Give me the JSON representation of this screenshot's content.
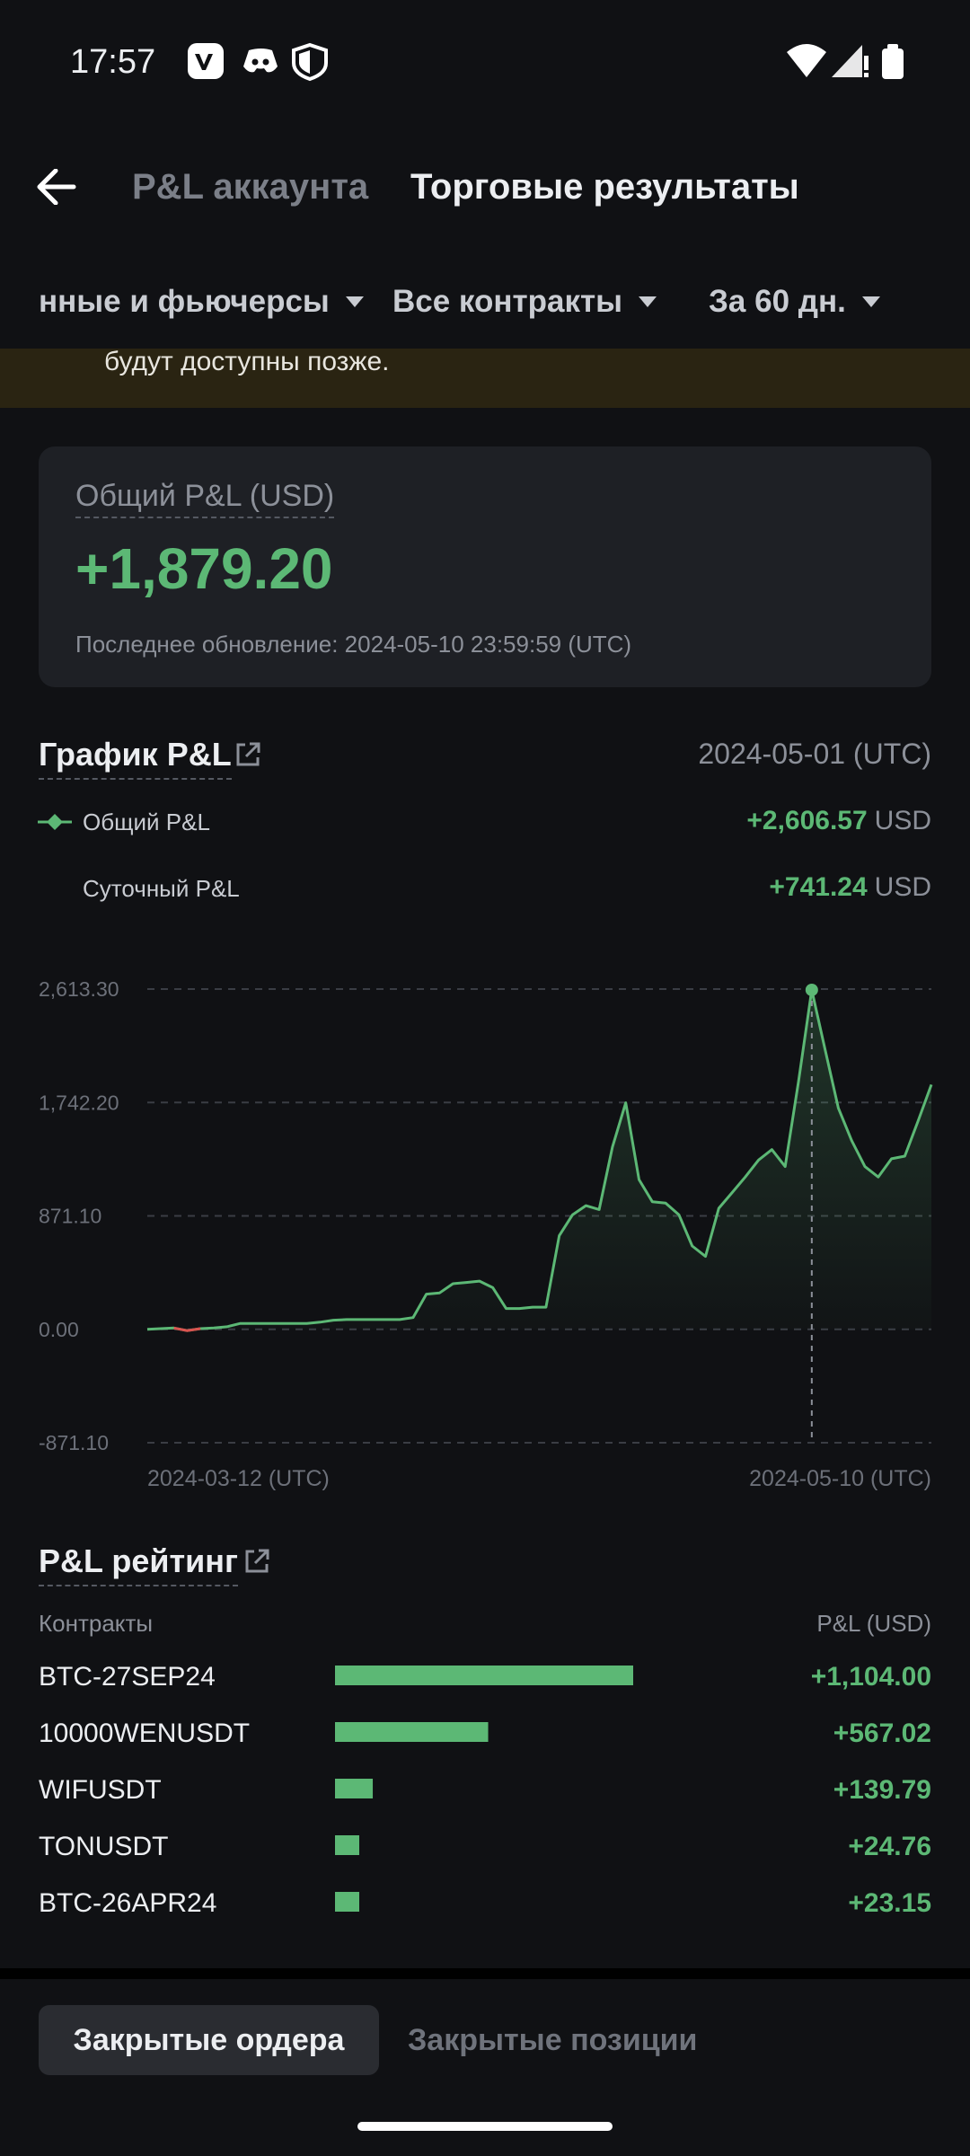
{
  "status_bar": {
    "time": "17:57"
  },
  "header": {
    "tab_inactive": "P&L аккаунта",
    "tab_active": "Торговые результаты"
  },
  "filters": [
    "нные и фьючерсы",
    "Все контракты",
    "За 60 дн."
  ],
  "banner": {
    "text": "будут доступны позже."
  },
  "summary": {
    "label": "Общий P&L (USD)",
    "value": "+1,879.20",
    "updated": "Последнее обновление: 2024-05-10 23:59:59 (UTC)"
  },
  "pnl_chart": {
    "type": "line",
    "title": "График P&L",
    "selected_date": "2024-05-01 (UTC)",
    "legend": [
      {
        "label": "Общий P&L",
        "value": "+2,606.57",
        "unit": "USD"
      },
      {
        "label": "Суточный P&L",
        "value": "+741.24",
        "unit": "USD"
      }
    ],
    "color": "#5cb875",
    "negative_color": "#d9534f",
    "values": [
      0,
      5,
      10,
      -10,
      5,
      10,
      20,
      45,
      45,
      45,
      45,
      45,
      45,
      55,
      70,
      75,
      75,
      75,
      75,
      75,
      90,
      270,
      280,
      350,
      360,
      370,
      320,
      160,
      160,
      170,
      170,
      720,
      880,
      950,
      920,
      1400,
      1740,
      1150,
      980,
      970,
      880,
      640,
      560,
      930,
      1050,
      1170,
      1300,
      1380,
      1250,
      1900,
      2606.57,
      2150,
      1700,
      1450,
      1250,
      1170,
      1310,
      1330,
      1600,
      1879.2
    ],
    "selected_index": 50,
    "ylim": [
      -871.1,
      2613.3
    ],
    "yticks": [
      {
        "value": -871.1,
        "label": "-871.10"
      },
      {
        "value": 0,
        "label": "0.00"
      },
      {
        "value": 871.1,
        "label": "871.10"
      },
      {
        "value": 1742.2,
        "label": "1,742.20"
      },
      {
        "value": 2613.3,
        "label": "2,613.30"
      }
    ],
    "x_labels": [
      "2024-03-12 (UTC)",
      "2024-05-10 (UTC)"
    ],
    "grid": true
  },
  "ranking": {
    "title": "P&L рейтинг",
    "col_left": "Контракты",
    "col_right": "P&L (USD)",
    "color": "#5cb875",
    "rows": [
      {
        "name": "BTC-27SEP24",
        "value": 1104.0,
        "label": "+1,104.00"
      },
      {
        "name": "10000WENUSDT",
        "value": 567.02,
        "label": "+567.02"
      },
      {
        "name": "WIFUSDT",
        "value": 139.79,
        "label": "+139.79"
      },
      {
        "name": "TONUSDT",
        "value": 24.76,
        "label": "+24.76"
      },
      {
        "name": "BTC-26APR24",
        "value": 23.15,
        "label": "+23.15"
      }
    ]
  },
  "bottom_tabs": [
    "Закрытые ордера",
    "Закрытые позиции"
  ]
}
